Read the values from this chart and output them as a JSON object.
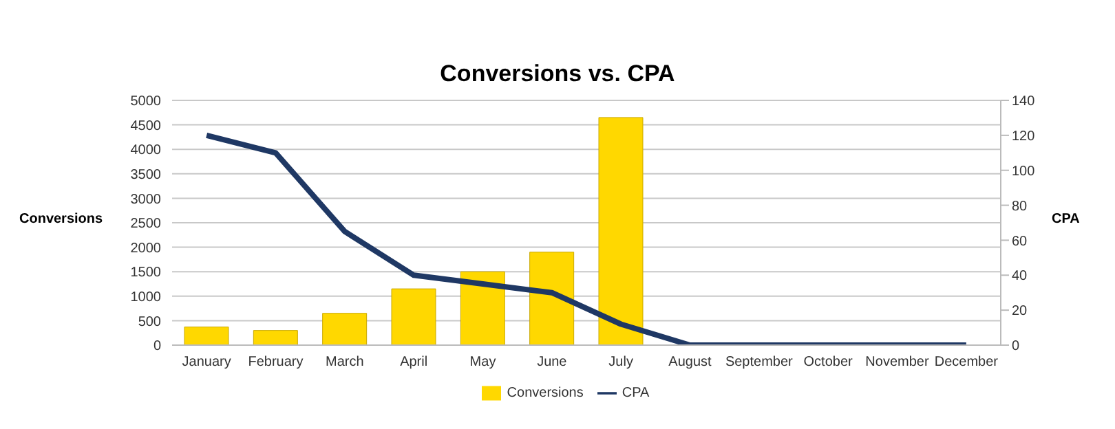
{
  "chart_data": {
    "type": "bar",
    "title": "Conversions vs. CPA",
    "ylabel": "Conversions",
    "y2label": "CPA",
    "categories": [
      "January",
      "February",
      "March",
      "April",
      "May",
      "June",
      "July",
      "August",
      "September",
      "October",
      "November",
      "December"
    ],
    "series": [
      {
        "name": "Conversions",
        "color": "#ffd800",
        "values": [
          370,
          300,
          650,
          1150,
          1500,
          1900,
          4650,
          0,
          0,
          0,
          0,
          0
        ]
      },
      {
        "name": "CPA",
        "type": "line",
        "axis": "y2",
        "color": "#1f3864",
        "values": [
          120,
          110,
          65,
          40,
          35,
          30,
          12,
          0,
          0,
          0,
          0,
          0
        ]
      }
    ],
    "ylim": [
      0,
      5000
    ],
    "yticks": [
      0,
      500,
      1000,
      1500,
      2000,
      2500,
      3000,
      3500,
      4000,
      4500,
      5000
    ],
    "y2lim": [
      0,
      140
    ],
    "y2ticks": [
      0,
      20,
      40,
      60,
      80,
      100,
      120,
      140
    ],
    "grid": "y",
    "legend": "bottom",
    "marker": "none",
    "line_style": "solid"
  }
}
